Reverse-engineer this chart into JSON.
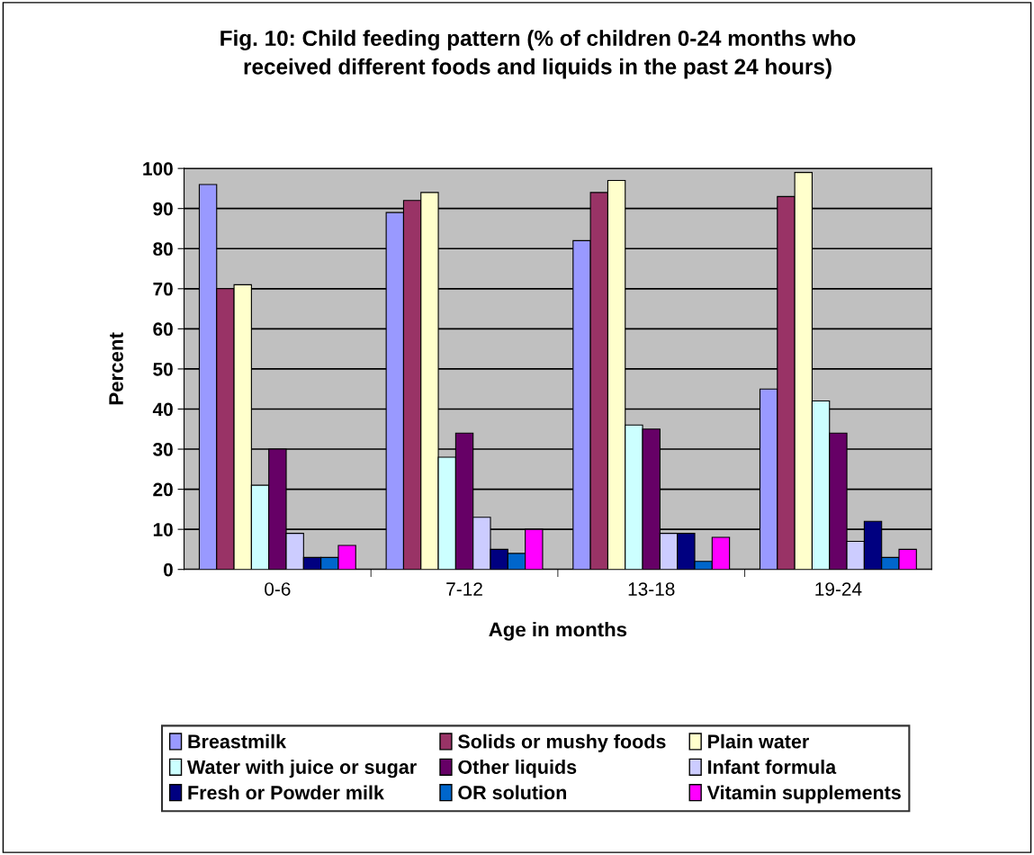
{
  "chart_data": {
    "type": "bar",
    "title": "Fig. 10: Child feeding pattern (% of children 0-24 months who\nreceived different foods and liquids in the past 24 hours)",
    "xlabel": "Age in months",
    "ylabel": "Percent",
    "categories": [
      "0-6",
      "7-12",
      "13-18",
      "19-24"
    ],
    "series": [
      {
        "name": "Breastmilk",
        "color": "#9999ff",
        "values": [
          96,
          89,
          82,
          45
        ]
      },
      {
        "name": "Solids or mushy foods",
        "color": "#993366",
        "values": [
          70,
          92,
          94,
          93
        ]
      },
      {
        "name": "Plain water",
        "color": "#ffffcc",
        "values": [
          71,
          94,
          97,
          99
        ]
      },
      {
        "name": "Water with juice or sugar",
        "color": "#ccffff",
        "values": [
          21,
          28,
          36,
          42
        ]
      },
      {
        "name": "Other liquids",
        "color": "#660066",
        "values": [
          30,
          34,
          35,
          34
        ]
      },
      {
        "name": "Infant formula",
        "color": "#ccccff",
        "values": [
          9,
          13,
          9,
          7
        ]
      },
      {
        "name": "Fresh or Powder milk",
        "color": "#000080",
        "values": [
          3,
          5,
          9,
          12
        ]
      },
      {
        "name": "OR solution",
        "color": "#0066cc",
        "values": [
          3,
          4,
          2,
          3
        ]
      },
      {
        "name": "Vitamin supplements",
        "color": "#ff00ff",
        "values": [
          6,
          10,
          8,
          5
        ]
      }
    ],
    "ylim": [
      0,
      100
    ],
    "yticks": [
      0,
      10,
      20,
      30,
      40,
      50,
      60,
      70,
      80,
      90,
      100
    ],
    "grid": "y",
    "legend": "bottom"
  }
}
